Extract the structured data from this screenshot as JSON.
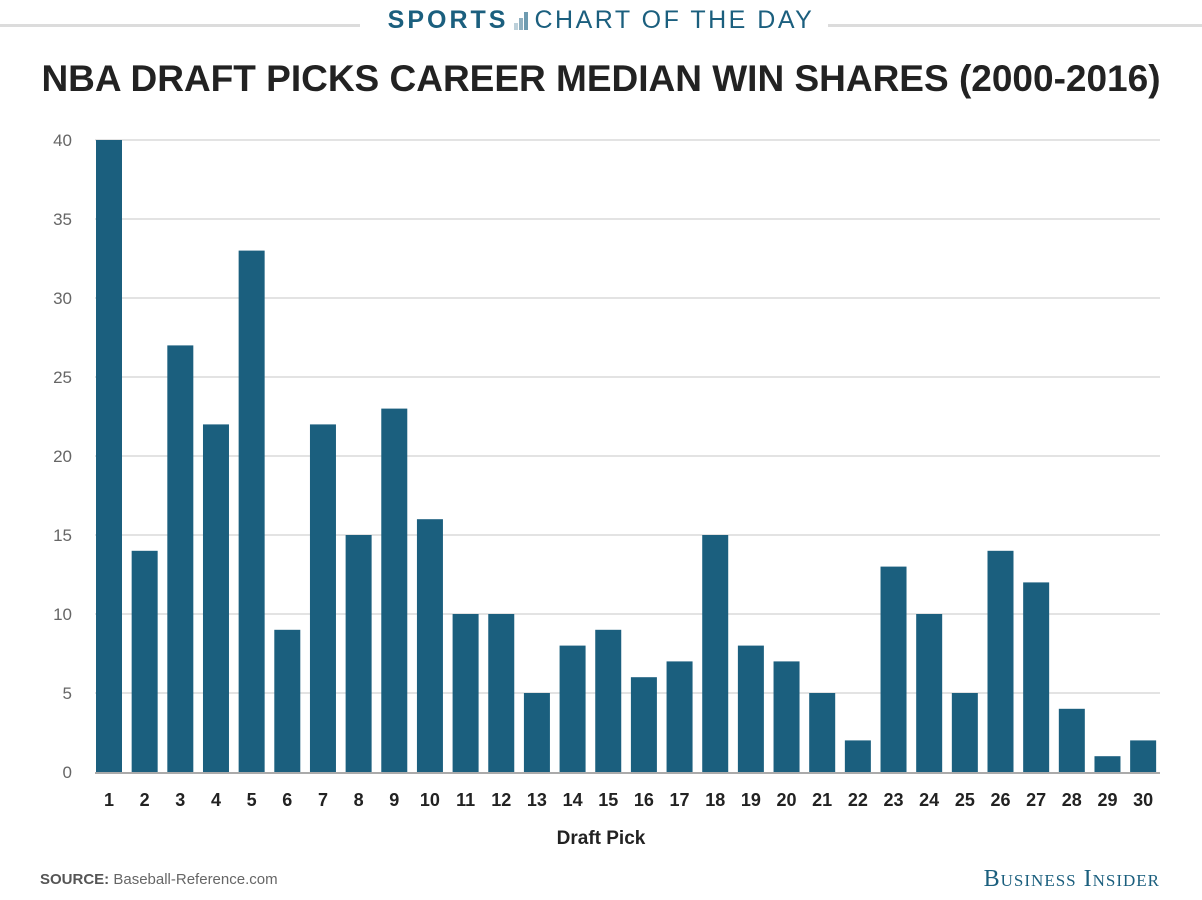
{
  "header": {
    "kicker_bold": "SPORTS",
    "kicker_rest": "CHART OF THE DAY"
  },
  "footer": {
    "source_label": "SOURCE:",
    "source_value": "Baseball-Reference.com",
    "brand": "Business Insider"
  },
  "colors": {
    "bar": "#1b5f7e",
    "grid": "#e3e3e3",
    "kicker": "#1b5f7e"
  },
  "chart_data": {
    "type": "bar",
    "title": "NBA DRAFT PICKS CAREER MEDIAN WIN SHARES (2000-2016)",
    "xlabel": "Draft Pick",
    "ylabel": "",
    "ylim": [
      0,
      40
    ],
    "yticks": [
      0,
      5,
      10,
      15,
      20,
      25,
      30,
      35,
      40
    ],
    "grid": true,
    "categories": [
      "1",
      "2",
      "3",
      "4",
      "5",
      "6",
      "7",
      "8",
      "9",
      "10",
      "11",
      "12",
      "13",
      "14",
      "15",
      "16",
      "17",
      "18",
      "19",
      "20",
      "21",
      "22",
      "23",
      "24",
      "25",
      "26",
      "27",
      "28",
      "29",
      "30"
    ],
    "values": [
      40,
      14,
      27,
      22,
      33,
      9,
      22,
      15,
      23,
      16,
      10,
      10,
      5,
      8,
      9,
      6,
      7,
      15,
      8,
      7,
      5,
      2,
      13,
      10,
      5,
      14,
      12,
      4,
      1,
      2
    ]
  }
}
